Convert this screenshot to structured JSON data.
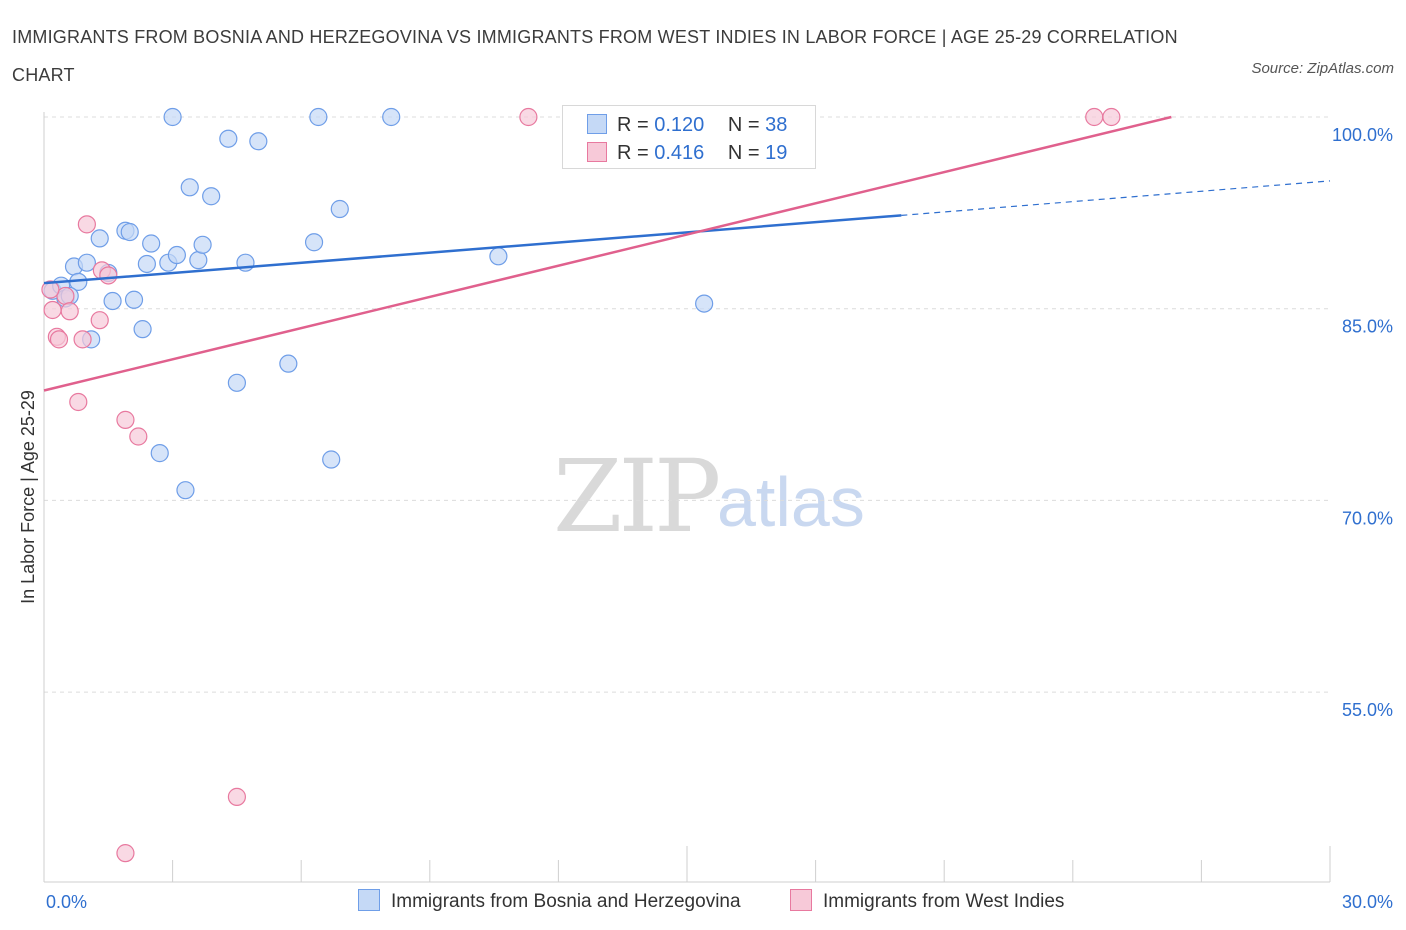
{
  "title": "IMMIGRANTS FROM BOSNIA AND HERZEGOVINA VS IMMIGRANTS FROM WEST INDIES IN LABOR FORCE | AGE 25-29 CORRELATION CHART",
  "source": "Source: ZipAtlas.com",
  "watermark": {
    "zip": "ZIP",
    "atlas": "atlas"
  },
  "colors": {
    "blue": "#6f9ee8",
    "blue_fill": "#c5d9f6",
    "pink": "#e8799f",
    "pink_fill": "#f7c9d8",
    "blue_line": "#2f6fcf",
    "pink_line": "#e0608d",
    "axis_text": "#2f6fcf"
  },
  "legend": {
    "rows": [
      {
        "r_label": "R =",
        "r_value": "0.120",
        "n_label": "N =",
        "n_value": "38"
      },
      {
        "r_label": "R =",
        "r_value": "0.416",
        "n_label": "N =",
        "n_value": "19"
      }
    ]
  },
  "chart_data": {
    "type": "scatter",
    "title": "IMMIGRANTS FROM BOSNIA AND HERZEGOVINA VS IMMIGRANTS FROM WEST INDIES IN LABOR FORCE | AGE 25-29 CORRELATION CHART",
    "xlabel": "",
    "ylabel": "In Labor Force | Age 25-29",
    "xlim": [
      0,
      30
    ],
    "ylim": [
      40,
      100
    ],
    "x_tick_labels": [
      "0.0%",
      "30.0%"
    ],
    "y_ticks": [
      55,
      70,
      85,
      100
    ],
    "y_tick_labels": [
      "55.0%",
      "70.0%",
      "85.0%",
      "100.0%"
    ],
    "grid": true,
    "legend_position": "top-center",
    "series": [
      {
        "name": "Immigrants from Bosnia and Herzegovina",
        "color": "#6f9ee8",
        "points": [
          [
            0.2,
            86.4
          ],
          [
            0.4,
            86.8
          ],
          [
            0.5,
            85.8
          ],
          [
            0.7,
            88.3
          ],
          [
            0.8,
            87.1
          ],
          [
            1.0,
            88.6
          ],
          [
            1.1,
            82.6
          ],
          [
            1.3,
            90.5
          ],
          [
            1.5,
            87.8
          ],
          [
            1.6,
            85.6
          ],
          [
            1.9,
            91.1
          ],
          [
            2.0,
            91.0
          ],
          [
            2.1,
            85.7
          ],
          [
            2.3,
            83.4
          ],
          [
            2.4,
            88.5
          ],
          [
            2.5,
            90.1
          ],
          [
            2.7,
            73.7
          ],
          [
            2.9,
            88.6
          ],
          [
            3.1,
            89.2
          ],
          [
            3.3,
            70.8
          ],
          [
            3.4,
            94.5
          ],
          [
            3.6,
            88.8
          ],
          [
            3.7,
            90.0
          ],
          [
            3.9,
            93.8
          ],
          [
            4.3,
            98.3
          ],
          [
            4.5,
            79.2
          ],
          [
            4.7,
            88.6
          ],
          [
            5.0,
            98.1
          ],
          [
            5.7,
            80.7
          ],
          [
            6.3,
            90.2
          ],
          [
            6.7,
            73.2
          ],
          [
            6.9,
            92.8
          ],
          [
            3.0,
            100.0
          ],
          [
            6.4,
            100.0
          ],
          [
            8.1,
            100.0
          ],
          [
            10.6,
            89.1
          ],
          [
            15.4,
            85.4
          ],
          [
            0.6,
            86.0
          ]
        ]
      },
      {
        "name": "Immigrants from West Indies",
        "color": "#e8799f",
        "points": [
          [
            0.2,
            84.9
          ],
          [
            0.3,
            82.8
          ],
          [
            0.35,
            82.6
          ],
          [
            0.5,
            86.0
          ],
          [
            0.6,
            84.8
          ],
          [
            0.8,
            77.7
          ],
          [
            0.9,
            82.6
          ],
          [
            1.0,
            91.6
          ],
          [
            1.3,
            84.1
          ],
          [
            1.35,
            88.0
          ],
          [
            1.5,
            87.6
          ],
          [
            1.9,
            76.3
          ],
          [
            2.2,
            75.0
          ],
          [
            4.5,
            46.8
          ],
          [
            1.9,
            42.4
          ],
          [
            11.3,
            100.0
          ],
          [
            24.5,
            100.0
          ],
          [
            24.9,
            100.0
          ],
          [
            0.15,
            86.5
          ]
        ]
      }
    ],
    "trendlines": [
      {
        "series": "Immigrants from Bosnia and Herzegovina",
        "x": [
          0,
          20.0
        ],
        "y": [
          87.0,
          92.3
        ],
        "dashed_extension_x": [
          20.0,
          30.0
        ],
        "dashed_extension_y": [
          92.3,
          95.0
        ]
      },
      {
        "series": "Immigrants from West Indies",
        "x": [
          0,
          26.3
        ],
        "y": [
          78.6,
          100.0
        ]
      }
    ]
  }
}
